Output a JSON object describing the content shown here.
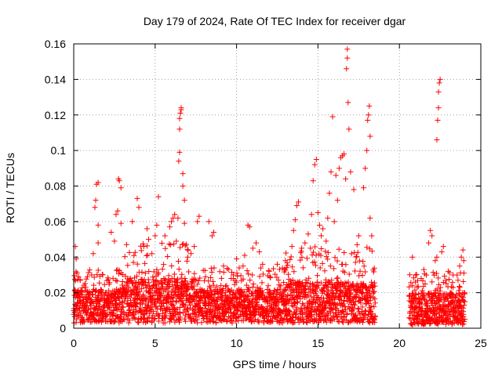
{
  "chart_data": {
    "type": "scatter",
    "title": "Day 179 of 2024, Rate Of TEC Index for receiver dgar",
    "xlabel": "GPS time / hours",
    "ylabel": "ROTI / TECUs",
    "xlim": [
      0,
      25
    ],
    "ylim": [
      0,
      0.16
    ],
    "x_ticks": [
      0,
      5,
      10,
      15,
      20,
      25
    ],
    "x_tick_labels": [
      "0",
      "5",
      "10",
      "15",
      "20",
      "25"
    ],
    "y_ticks": [
      0,
      0.02,
      0.04,
      0.06,
      0.08,
      0.1,
      0.12,
      0.14,
      0.16
    ],
    "y_tick_labels": [
      "0",
      "0.02",
      "0.04",
      "0.06",
      "0.08",
      "0.1",
      "0.12",
      "0.14",
      "0.16"
    ],
    "grid": true,
    "legend": "none",
    "marker": "plus",
    "color": "#ff0000",
    "data_gap_hours": [
      18.5,
      20.6
    ],
    "series": [
      {
        "points": [
          [
            0.1,
            0.046
          ],
          [
            0.15,
            0.039
          ],
          [
            0.2,
            0.031
          ],
          [
            0.3,
            0.029
          ],
          [
            0.4,
            0.027
          ],
          [
            1.1,
            0.03
          ],
          [
            1.2,
            0.042
          ],
          [
            1.3,
            0.068
          ],
          [
            1.35,
            0.072
          ],
          [
            1.4,
            0.081
          ],
          [
            1.5,
            0.082
          ],
          [
            1.5,
            0.058
          ],
          [
            1.5,
            0.048
          ],
          [
            2.3,
            0.054
          ],
          [
            2.5,
            0.049
          ],
          [
            2.6,
            0.064
          ],
          [
            2.7,
            0.066
          ],
          [
            2.75,
            0.084
          ],
          [
            2.8,
            0.083
          ],
          [
            2.9,
            0.079
          ],
          [
            2.9,
            0.059
          ],
          [
            3.6,
            0.06
          ],
          [
            3.9,
            0.073
          ],
          [
            4.0,
            0.068
          ],
          [
            4.3,
            0.046
          ],
          [
            4.5,
            0.056
          ],
          [
            4.6,
            0.05
          ],
          [
            4.8,
            0.042
          ],
          [
            5.0,
            0.052
          ],
          [
            5.1,
            0.058
          ],
          [
            5.2,
            0.074
          ],
          [
            5.6,
            0.052
          ],
          [
            5.9,
            0.057
          ],
          [
            6.0,
            0.06
          ],
          [
            6.1,
            0.062
          ],
          [
            6.2,
            0.064
          ],
          [
            6.3,
            0.049
          ],
          [
            6.4,
            0.062
          ],
          [
            6.45,
            0.094
          ],
          [
            6.5,
            0.099
          ],
          [
            6.5,
            0.112
          ],
          [
            6.5,
            0.118
          ],
          [
            6.55,
            0.121
          ],
          [
            6.6,
            0.124
          ],
          [
            6.6,
            0.123
          ],
          [
            6.7,
            0.087
          ],
          [
            6.7,
            0.08
          ],
          [
            6.8,
            0.072
          ],
          [
            6.8,
            0.059
          ],
          [
            7.0,
            0.04
          ],
          [
            7.2,
            0.042
          ],
          [
            7.4,
            0.046
          ],
          [
            7.6,
            0.06
          ],
          [
            7.7,
            0.063
          ],
          [
            8.3,
            0.06
          ],
          [
            8.5,
            0.052
          ],
          [
            8.6,
            0.054
          ],
          [
            9.2,
            0.035
          ],
          [
            9.5,
            0.033
          ],
          [
            9.8,
            0.03
          ],
          [
            10.0,
            0.039
          ],
          [
            10.4,
            0.035
          ],
          [
            10.5,
            0.041
          ],
          [
            10.7,
            0.058
          ],
          [
            10.8,
            0.057
          ],
          [
            11.0,
            0.045
          ],
          [
            11.2,
            0.048
          ],
          [
            11.4,
            0.043
          ],
          [
            11.6,
            0.036
          ],
          [
            12.0,
            0.032
          ],
          [
            12.5,
            0.036
          ],
          [
            13.0,
            0.038
          ],
          [
            13.4,
            0.046
          ],
          [
            13.5,
            0.055
          ],
          [
            13.6,
            0.061
          ],
          [
            13.7,
            0.069
          ],
          [
            13.8,
            0.071
          ],
          [
            14.0,
            0.045
          ],
          [
            14.2,
            0.048
          ],
          [
            14.4,
            0.053
          ],
          [
            14.6,
            0.064
          ],
          [
            14.7,
            0.083
          ],
          [
            14.8,
            0.092
          ],
          [
            14.9,
            0.095
          ],
          [
            15.0,
            0.065
          ],
          [
            15.1,
            0.058
          ],
          [
            15.2,
            0.052
          ],
          [
            15.3,
            0.056
          ],
          [
            15.5,
            0.049
          ],
          [
            15.6,
            0.062
          ],
          [
            15.7,
            0.076
          ],
          [
            15.8,
            0.088
          ],
          [
            15.9,
            0.119
          ],
          [
            16.0,
            0.06
          ],
          [
            16.1,
            0.086
          ],
          [
            16.2,
            0.072
          ],
          [
            16.3,
            0.09
          ],
          [
            16.4,
            0.096
          ],
          [
            16.5,
            0.097
          ],
          [
            16.6,
            0.098
          ],
          [
            16.7,
            0.084
          ],
          [
            16.75,
            0.146
          ],
          [
            16.8,
            0.152
          ],
          [
            16.8,
            0.157
          ],
          [
            16.85,
            0.127
          ],
          [
            16.9,
            0.112
          ],
          [
            17.0,
            0.088
          ],
          [
            17.2,
            0.078
          ],
          [
            17.4,
            0.047
          ],
          [
            17.5,
            0.052
          ],
          [
            17.8,
            0.079
          ],
          [
            17.9,
            0.09
          ],
          [
            18.0,
            0.1
          ],
          [
            18.05,
            0.117
          ],
          [
            18.1,
            0.12
          ],
          [
            18.15,
            0.125
          ],
          [
            18.2,
            0.108
          ],
          [
            18.2,
            0.062
          ],
          [
            18.3,
            0.052
          ],
          [
            20.8,
            0.04
          ],
          [
            21.0,
            0.03
          ],
          [
            21.5,
            0.033
          ],
          [
            21.8,
            0.048
          ],
          [
            21.9,
            0.055
          ],
          [
            22.0,
            0.052
          ],
          [
            22.2,
            0.038
          ],
          [
            22.3,
            0.04
          ],
          [
            22.3,
            0.106
          ],
          [
            22.35,
            0.117
          ],
          [
            22.4,
            0.124
          ],
          [
            22.4,
            0.133
          ],
          [
            22.45,
            0.138
          ],
          [
            22.5,
            0.14
          ],
          [
            22.6,
            0.043
          ],
          [
            22.7,
            0.046
          ],
          [
            23.0,
            0.032
          ],
          [
            23.3,
            0.03
          ],
          [
            23.6,
            0.027
          ],
          [
            23.7,
            0.035
          ],
          [
            23.8,
            0.04
          ],
          [
            23.9,
            0.044
          ],
          [
            23.95,
            0.038
          ]
        ],
        "density_bands": [
          {
            "x_range": [
              0,
              3
            ],
            "base": [
              0.003,
              0.022
            ],
            "spread": 0.012
          },
          {
            "x_range": [
              3,
              7.5
            ],
            "base": [
              0.003,
              0.028
            ],
            "spread": 0.02
          },
          {
            "x_range": [
              7.5,
              13
            ],
            "base": [
              0.003,
              0.022
            ],
            "spread": 0.012
          },
          {
            "x_range": [
              13,
              18.5
            ],
            "base": [
              0.003,
              0.026
            ],
            "spread": 0.02
          },
          {
            "x_range": [
              20.6,
              24
            ],
            "base": [
              0.002,
              0.02
            ],
            "spread": 0.012
          }
        ]
      }
    ]
  }
}
